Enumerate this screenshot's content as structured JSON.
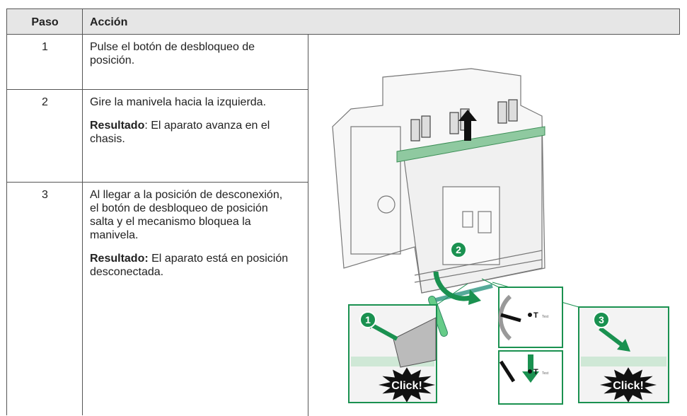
{
  "table": {
    "header": [
      "Paso",
      "Acción"
    ],
    "rows": [
      {
        "step": "1",
        "action": "Pulse el botón de desbloqueo de posición."
      },
      {
        "step": "2",
        "action": "Gire la manivela hacia la izquierda.",
        "result_label": "Resultado",
        "result_text": ": El aparato avanza en el chasis."
      },
      {
        "step": "3",
        "action": "Al llegar a la posición de desconexión, el botón de desbloqueo de posición salta y el mecanismo bloquea la manivela.",
        "result_label": "Resultado:",
        "result_text": " El aparato está en posición desconectada."
      }
    ]
  },
  "illustration": {
    "callouts": [
      "1",
      "2",
      "3"
    ],
    "click_labels": [
      "Click!",
      "Click!"
    ],
    "test_labels": [
      "Test",
      "Test"
    ],
    "t_labels": [
      "T",
      "T"
    ]
  }
}
